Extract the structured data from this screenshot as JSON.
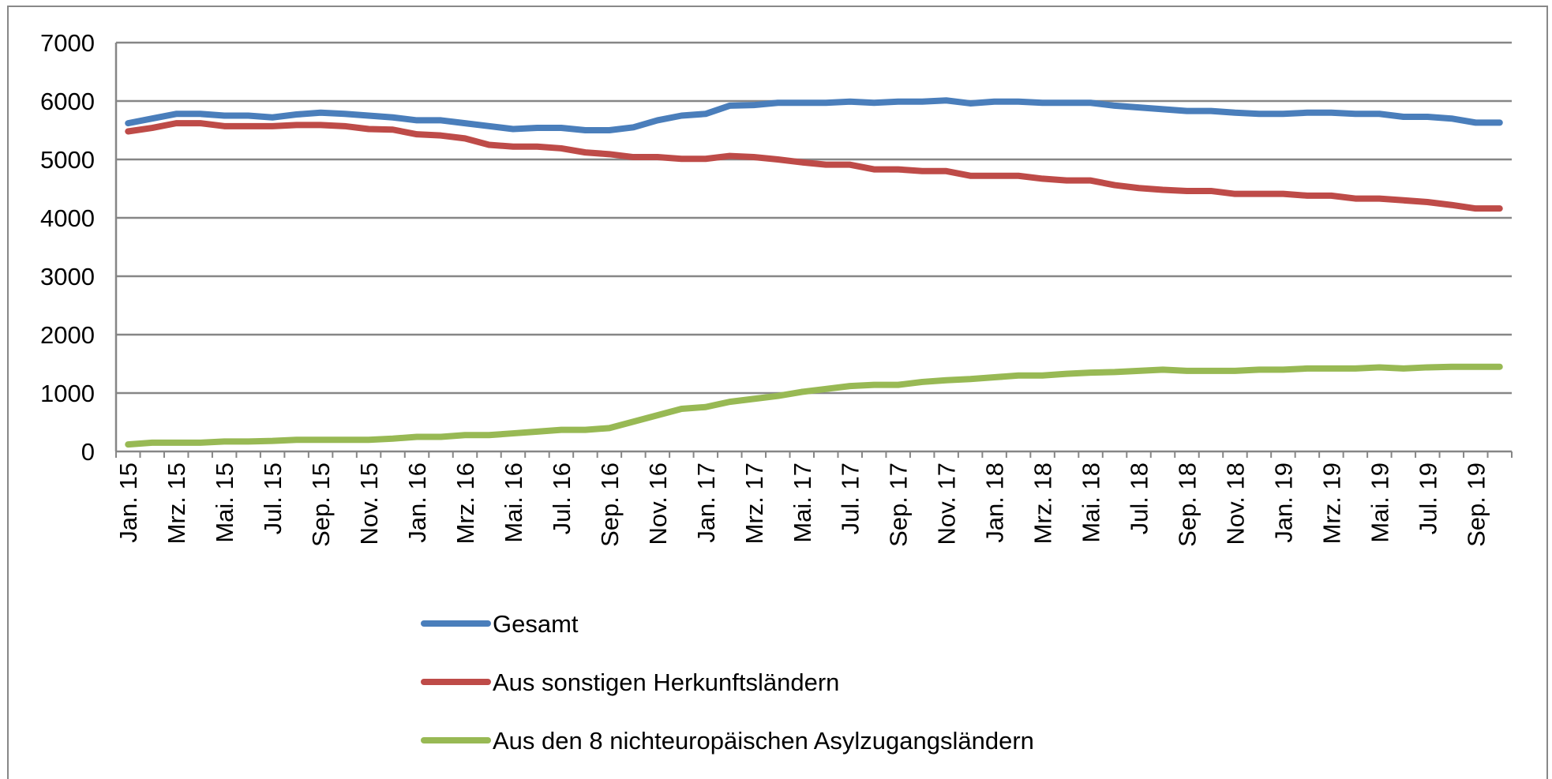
{
  "chart_data": {
    "type": "line",
    "categories": [
      "Jan. 15",
      null,
      "Mrz. 15",
      null,
      "Mai. 15",
      null,
      "Jul. 15",
      null,
      "Sep. 15",
      null,
      "Nov. 15",
      null,
      "Jan. 16",
      null,
      "Mrz. 16",
      null,
      "Mai. 16",
      null,
      "Jul. 16",
      null,
      "Sep. 16",
      null,
      "Nov. 16",
      null,
      "Jan. 17",
      null,
      "Mrz. 17",
      null,
      "Mai. 17",
      null,
      "Jul. 17",
      null,
      "Sep. 17",
      null,
      "Nov. 17",
      null,
      "Jan. 18",
      null,
      "Mrz. 18",
      null,
      "Mai. 18",
      null,
      "Jul. 18",
      null,
      "Sep. 18",
      null,
      "Nov. 18",
      null,
      "Jan. 19",
      null,
      "Mrz. 19",
      null,
      "Mai. 19",
      null,
      "Jul. 19",
      null,
      "Sep. 19",
      null
    ],
    "series": [
      {
        "name": "Gesamt",
        "color": "#4a7ebb",
        "values": [
          5620,
          5700,
          5780,
          5780,
          5750,
          5750,
          5720,
          5770,
          5800,
          5780,
          5750,
          5720,
          5670,
          5670,
          5620,
          5570,
          5520,
          5540,
          5540,
          5500,
          5500,
          5550,
          5670,
          5750,
          5780,
          5920,
          5930,
          5970,
          5970,
          5970,
          5990,
          5970,
          5990,
          5990,
          6010,
          5960,
          5990,
          5990,
          5970,
          5970,
          5970,
          5920,
          5890,
          5860,
          5830,
          5830,
          5800,
          5780,
          5780,
          5800,
          5800,
          5780,
          5780,
          5730,
          5730,
          5700,
          5630,
          5630
        ]
      },
      {
        "name": "Aus sonstigen Herkunftsländern",
        "color": "#be4b48",
        "values": [
          5480,
          5540,
          5620,
          5620,
          5570,
          5570,
          5570,
          5590,
          5590,
          5570,
          5520,
          5510,
          5430,
          5410,
          5360,
          5250,
          5220,
          5220,
          5190,
          5120,
          5090,
          5040,
          5040,
          5010,
          5010,
          5060,
          5040,
          5000,
          4950,
          4910,
          4910,
          4830,
          4830,
          4800,
          4800,
          4720,
          4720,
          4720,
          4670,
          4640,
          4640,
          4560,
          4510,
          4480,
          4460,
          4460,
          4410,
          4410,
          4410,
          4380,
          4380,
          4330,
          4330,
          4300,
          4270,
          4220,
          4160,
          4160
        ]
      },
      {
        "name": "Aus den 8 nichteuropäischen Asylzugangsländern",
        "color": "#98b954",
        "values": [
          120,
          150,
          150,
          150,
          170,
          170,
          180,
          200,
          200,
          200,
          200,
          220,
          250,
          250,
          280,
          280,
          310,
          340,
          370,
          370,
          400,
          510,
          620,
          730,
          760,
          850,
          900,
          950,
          1020,
          1070,
          1120,
          1140,
          1140,
          1190,
          1220,
          1240,
          1270,
          1300,
          1300,
          1330,
          1350,
          1360,
          1380,
          1400,
          1380,
          1380,
          1380,
          1400,
          1400,
          1420,
          1420,
          1420,
          1440,
          1420,
          1440,
          1450,
          1450,
          1450
        ]
      }
    ],
    "ylim": [
      0,
      7000
    ],
    "yticks": [
      0,
      1000,
      2000,
      3000,
      4000,
      5000,
      6000,
      7000
    ],
    "grid": true
  }
}
